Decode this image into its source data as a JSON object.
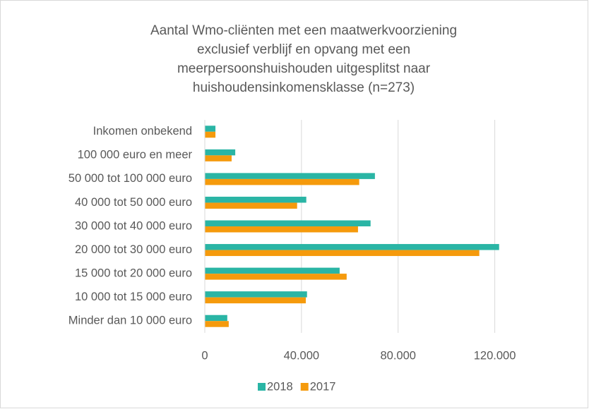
{
  "chart_data": {
    "type": "bar",
    "orientation": "horizontal",
    "title": [
      "Aantal Wmo-cliënten met een maatwerkvoorziening",
      "exclusief verblijf en opvang met een",
      "meerpersoonshuishouden uitgesplitst naar",
      "huishoudensinkomensklasse (n=273)"
    ],
    "categories": [
      "Inkomen onbekend",
      "100 000 euro en meer",
      "50 000 tot 100 000 euro",
      "40 000 tot 50 000 euro",
      "30 000 tot 40 000 euro",
      "20 000 tot 30 000 euro",
      "15 000 tot 20 000 euro",
      "10 000 tot 15 000 euro",
      "Minder dan 10 000 euro"
    ],
    "series": [
      {
        "name": "2018",
        "color": "#2ab5a5",
        "values": [
          4400,
          12600,
          70400,
          42000,
          68600,
          121800,
          55800,
          42300,
          9300
        ]
      },
      {
        "name": "2017",
        "color": "#f59a0c",
        "values": [
          4400,
          11100,
          63900,
          38200,
          63400,
          113600,
          58700,
          41800,
          9900
        ]
      }
    ],
    "xlim": [
      0,
      140000
    ],
    "xticks": [
      0,
      {
        "value": 40000,
        "label": "40.000"
      },
      {
        "value": 80000,
        "label": "80.000"
      },
      {
        "value": 120000,
        "label": "120.000"
      }
    ],
    "grid": true,
    "legend": "bottom"
  }
}
